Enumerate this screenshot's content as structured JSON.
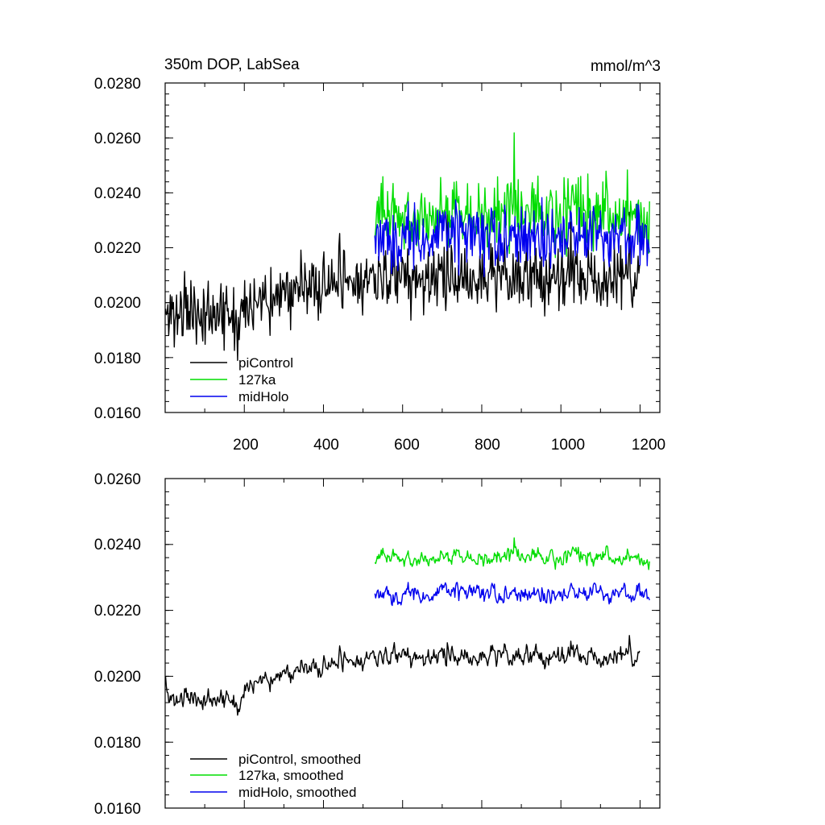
{
  "chart_data": [
    {
      "type": "line",
      "title": "350m DOP, LabSea",
      "units": "mmol/m^3",
      "xlim": [
        0,
        1250
      ],
      "ylim": [
        0.016,
        0.028
      ],
      "xticks": [
        200,
        400,
        600,
        800,
        1000,
        1200
      ],
      "xtick_labels": [
        "200",
        "400",
        "600",
        "800",
        "1000",
        "1200"
      ],
      "yticks": [
        0.016,
        0.018,
        0.02,
        0.022,
        0.024,
        0.026,
        0.028
      ],
      "ytick_labels": [
        "0.0160",
        "0.0180",
        "0.0200",
        "0.0220",
        "0.0240",
        "0.0260",
        "0.0280"
      ],
      "legend_position": "bottom-left",
      "series": [
        {
          "name": "piControl",
          "color": "#000000",
          "x_range": [
            1,
            1200
          ],
          "mean": 0.0208,
          "amplitude": 0.0018,
          "seed": 11
        },
        {
          "name": "127ka",
          "color": "#00dd00",
          "x_range": [
            530,
            1225
          ],
          "mean": 0.0232,
          "amplitude": 0.0018,
          "seed": 23
        },
        {
          "name": "midHolo",
          "color": "#0000ee",
          "x_range": [
            530,
            1225
          ],
          "mean": 0.0224,
          "amplitude": 0.0017,
          "seed": 37
        }
      ]
    },
    {
      "type": "line",
      "xlim": [
        0,
        1250
      ],
      "ylim": [
        0.016,
        0.026
      ],
      "xticks": [
        200,
        400,
        600,
        800,
        1000,
        1200
      ],
      "yticks": [
        0.016,
        0.018,
        0.02,
        0.022,
        0.024,
        0.026
      ],
      "ytick_labels": [
        "0.0160",
        "0.0180",
        "0.0200",
        "0.0220",
        "0.0240",
        "0.0260"
      ],
      "legend_position": "bottom-left",
      "series": [
        {
          "name": "piControl, smoothed",
          "color": "#000000",
          "x_range": [
            1,
            1200
          ],
          "mean": 0.0205,
          "amplitude": 0.0009,
          "seed": 11
        },
        {
          "name": "127ka, smoothed",
          "color": "#00dd00",
          "x_range": [
            530,
            1225
          ],
          "mean": 0.0236,
          "amplitude": 0.0007,
          "seed": 23
        },
        {
          "name": "midHolo, smoothed",
          "color": "#0000ee",
          "x_range": [
            530,
            1225
          ],
          "mean": 0.0225,
          "amplitude": 0.0008,
          "seed": 37
        }
      ]
    }
  ]
}
